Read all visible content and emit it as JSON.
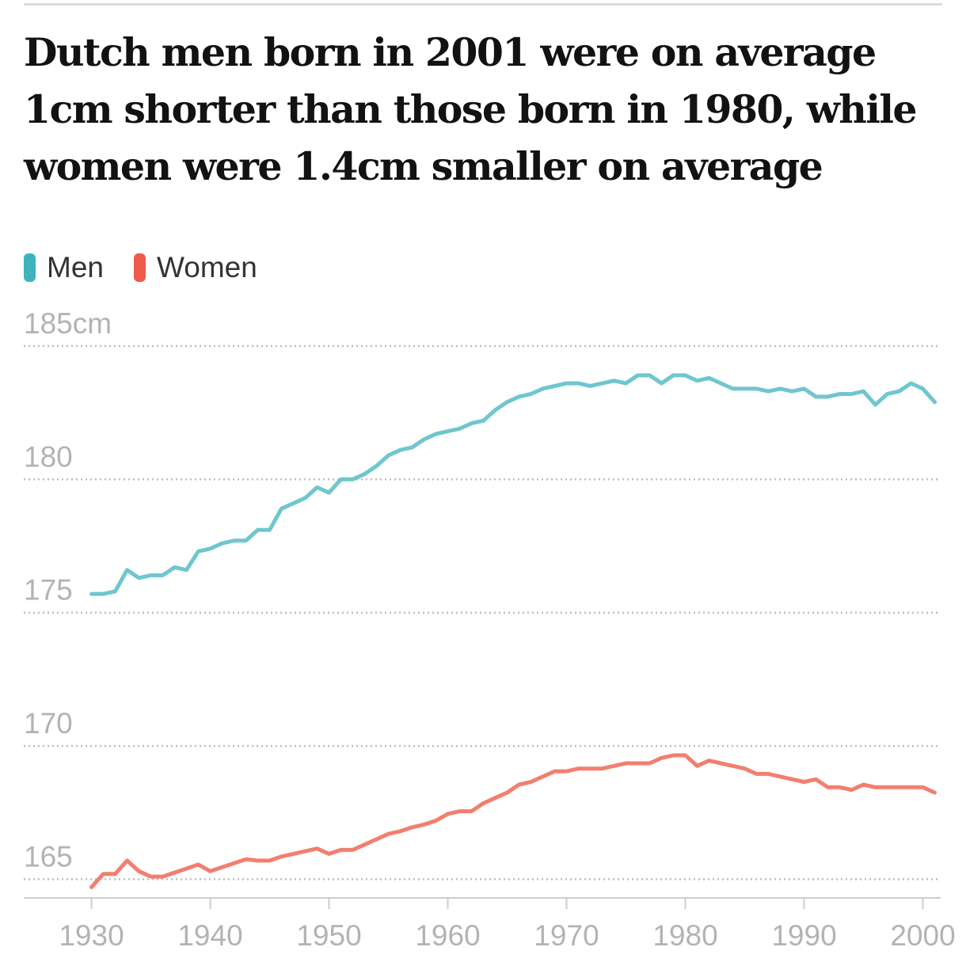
{
  "title": "Dutch men born in 2001 were on average 1cm shorter than those born in 1980, while women were 1.4cm smaller on average",
  "legend": [
    {
      "label": "Men",
      "color": "#3fb3bd"
    },
    {
      "label": "Women",
      "color": "#f05a48"
    }
  ],
  "colors": {
    "men_line": "#6fc6ce",
    "women_line": "#f27f6e",
    "grid": "#bdbdbd",
    "axis": "#cccccc",
    "tick_text": "#b3b3b3"
  },
  "chart_data": {
    "type": "line",
    "title": "Dutch men born in 2001 were on average 1cm shorter than those born in 1980, while women were 1.4cm smaller on average",
    "xlabel": "",
    "ylabel": "cm",
    "xlim": [
      1924.3,
      2001.5
    ],
    "ylim": [
      164.3,
      185
    ],
    "y_ticks": [
      {
        "value": 185,
        "label": "185cm"
      },
      {
        "value": 180,
        "label": "180"
      },
      {
        "value": 175,
        "label": "175"
      },
      {
        "value": 170,
        "label": "170"
      },
      {
        "value": 165,
        "label": "165"
      }
    ],
    "x_ticks": [
      {
        "value": 1930,
        "label": "1930"
      },
      {
        "value": 1940,
        "label": "1940"
      },
      {
        "value": 1950,
        "label": "1950"
      },
      {
        "value": 1960,
        "label": "1960"
      },
      {
        "value": 1970,
        "label": "1970"
      },
      {
        "value": 1980,
        "label": "1980"
      },
      {
        "value": 1990,
        "label": "1990"
      },
      {
        "value": 2000,
        "label": "2000"
      }
    ],
    "x": [
      1930,
      1931,
      1932,
      1933,
      1934,
      1935,
      1936,
      1937,
      1938,
      1939,
      1940,
      1941,
      1942,
      1943,
      1944,
      1945,
      1946,
      1947,
      1948,
      1949,
      1950,
      1951,
      1952,
      1953,
      1954,
      1955,
      1956,
      1957,
      1958,
      1959,
      1960,
      1961,
      1962,
      1963,
      1964,
      1965,
      1966,
      1967,
      1968,
      1969,
      1970,
      1971,
      1972,
      1973,
      1974,
      1975,
      1976,
      1977,
      1978,
      1979,
      1980,
      1981,
      1982,
      1983,
      1984,
      1985,
      1986,
      1987,
      1988,
      1989,
      1990,
      1991,
      1992,
      1993,
      1994,
      1995,
      1996,
      1997,
      1998,
      1999,
      2000,
      2001
    ],
    "series": [
      {
        "name": "Men",
        "values": [
          175.7,
          175.7,
          175.8,
          176.6,
          176.3,
          176.4,
          176.4,
          176.7,
          176.6,
          177.3,
          177.4,
          177.6,
          177.7,
          177.7,
          178.1,
          178.1,
          178.9,
          179.1,
          179.3,
          179.7,
          179.5,
          180.0,
          180.0,
          180.2,
          180.5,
          180.9,
          181.1,
          181.2,
          181.5,
          181.7,
          181.8,
          181.9,
          182.1,
          182.2,
          182.6,
          182.9,
          183.1,
          183.2,
          183.4,
          183.5,
          183.6,
          183.6,
          183.5,
          183.6,
          183.7,
          183.6,
          183.9,
          183.9,
          183.6,
          183.9,
          183.9,
          183.7,
          183.8,
          183.6,
          183.4,
          183.4,
          183.4,
          183.3,
          183.4,
          183.3,
          183.4,
          183.1,
          183.1,
          183.2,
          183.2,
          183.3,
          182.8,
          183.2,
          183.3,
          183.6,
          183.4,
          182.9
        ]
      },
      {
        "name": "Women",
        "values": [
          164.7,
          165.2,
          165.2,
          165.7,
          165.3,
          165.1,
          165.1,
          165.25,
          165.4,
          165.55,
          165.3,
          165.45,
          165.6,
          165.75,
          165.7,
          165.7,
          165.85,
          165.95,
          166.05,
          166.15,
          165.95,
          166.1,
          166.1,
          166.3,
          166.5,
          166.7,
          166.8,
          166.95,
          167.05,
          167.2,
          167.45,
          167.55,
          167.55,
          167.85,
          168.05,
          168.25,
          168.55,
          168.65,
          168.85,
          169.05,
          169.05,
          169.15,
          169.15,
          169.15,
          169.25,
          169.35,
          169.35,
          169.35,
          169.55,
          169.65,
          169.65,
          169.25,
          169.45,
          169.35,
          169.25,
          169.15,
          168.95,
          168.95,
          168.85,
          168.75,
          168.65,
          168.75,
          168.45,
          168.45,
          168.35,
          168.55,
          168.45,
          168.45,
          168.45,
          168.45,
          168.45,
          168.25
        ]
      }
    ],
    "grid": true,
    "legend_position": "top-left"
  }
}
